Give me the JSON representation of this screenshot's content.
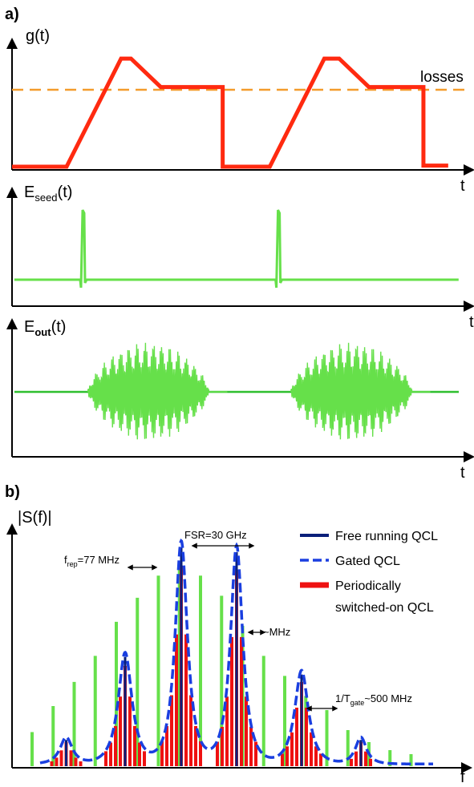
{
  "panel_labels": {
    "a": "a)",
    "b": "b)"
  },
  "colors": {
    "gain": "#ff2a10",
    "losses": "#f39c2c",
    "green": "#2fbf2f",
    "green_light": "#66e04a",
    "free_running": "#0a1f7a",
    "gated": "#1a3fe0",
    "switched": "#ee1111"
  },
  "chart_data": [
    {
      "type": "line",
      "ylabel": "g(t)",
      "xlabel": "t",
      "series": [
        {
          "name": "g(t)",
          "points": [
            [
              0,
              0
            ],
            [
              1.1,
              0
            ],
            [
              2.2,
              1.9
            ],
            [
              2.4,
              1.9
            ],
            [
              3,
              1.4
            ],
            [
              4.25,
              1.4
            ],
            [
              4.25,
              0
            ],
            [
              5.2,
              0
            ],
            [
              6.3,
              1.9
            ],
            [
              6.6,
              1.9
            ],
            [
              7.2,
              1.4
            ],
            [
              8.3,
              1.4
            ],
            [
              8.3,
              0.02
            ],
            [
              8.8,
              0.02
            ]
          ]
        },
        {
          "name": "losses",
          "level": 1.35,
          "x_range": [
            0,
            9
          ]
        }
      ],
      "annotation": "losses"
    },
    {
      "type": "line",
      "ylabel_main": "E",
      "ylabel_sub": "seed",
      "ylabel_end": "(t)",
      "xlabel": "t",
      "pulse_times": [
        1.5,
        5.7
      ],
      "baseline": 0
    },
    {
      "type": "line",
      "ylabel_main": "E",
      "ylabel_sub": "out",
      "ylabel_end": "(t)",
      "xlabel": "t",
      "bursts": [
        {
          "start": 1.55,
          "end": 4.4
        },
        {
          "start": 5.7,
          "end": 8.55
        }
      ]
    },
    {
      "type": "bar",
      "ylabel": "|S(f)|",
      "xlabel": "f",
      "annotations": {
        "frep": {
          "main": "f",
          "sub": "rep",
          "end": "=77 MHz"
        },
        "fsr": "FSR=30 GHz",
        "mhz": "~MHz",
        "tgate": {
          "main": "1/T",
          "sub": "gate",
          "end": "~500 MHz"
        }
      },
      "comb_lines": [
        0.17,
        0.3,
        0.42,
        0.55,
        0.72,
        0.84,
        0.95,
        1.0,
        0.95,
        0.85,
        0.7,
        0.55,
        0.45,
        0.35,
        0.28,
        0.18,
        0.12,
        0.08,
        0.06
      ],
      "gated_peaks": [
        {
          "center": 0.085,
          "height": 0.12,
          "width": 0.018
        },
        {
          "center": 0.232,
          "height": 0.5,
          "width": 0.02
        },
        {
          "center": 0.372,
          "height": 1.0,
          "width": 0.018
        },
        {
          "center": 0.51,
          "height": 0.98,
          "width": 0.018
        },
        {
          "center": 0.672,
          "height": 0.42,
          "width": 0.02
        },
        {
          "center": 0.82,
          "height": 0.12,
          "width": 0.016
        }
      ],
      "legend": [
        {
          "label": "Free running QCL",
          "style": "solid"
        },
        {
          "label": "Gated QCL",
          "style": "dashed"
        },
        {
          "label": "Periodically switched-on QCL",
          "lines": [
            "Periodically",
            "switched-on QCL"
          ],
          "style": "thick"
        }
      ]
    }
  ]
}
